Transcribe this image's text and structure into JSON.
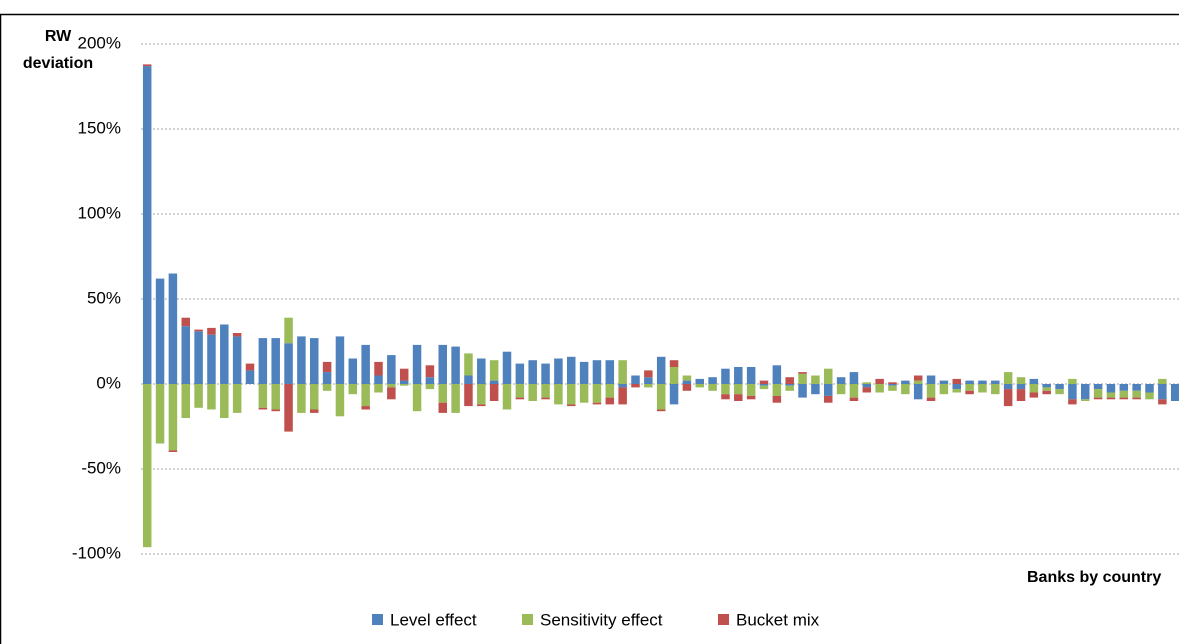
{
  "chart_data": {
    "type": "bar",
    "stacked": true,
    "y_label": [
      "RW",
      "deviation"
    ],
    "x_label": "Banks by country",
    "categories": [
      null,
      null,
      null,
      null,
      null,
      null,
      null,
      null,
      null,
      null,
      null,
      null,
      null,
      null,
      null,
      null,
      null,
      null,
      null,
      null,
      null,
      null,
      null,
      null,
      null,
      null,
      null,
      null,
      null,
      null,
      null,
      null,
      null,
      null,
      null,
      null,
      null,
      null,
      null,
      null,
      null,
      null,
      null,
      null,
      null,
      null,
      null,
      null,
      null,
      null,
      null,
      null,
      null,
      null,
      null,
      null,
      null,
      null,
      null,
      null,
      null,
      null,
      null,
      null,
      null,
      null,
      null,
      null,
      null,
      null,
      null,
      null,
      null,
      null,
      null,
      null,
      null,
      null,
      null,
      null,
      null
    ],
    "series": [
      {
        "name": "Level effect",
        "color": "#4f81bd",
        "values": [
          187,
          62,
          65,
          34,
          31,
          29,
          35,
          28,
          8,
          27,
          27,
          24,
          28,
          27,
          7,
          28,
          15,
          23,
          5,
          17,
          2,
          23,
          4,
          23,
          22,
          5,
          15,
          2,
          19,
          12,
          14,
          12,
          15,
          16,
          13,
          14,
          14,
          -2,
          5,
          4,
          16,
          -12,
          2,
          3,
          4,
          9,
          10,
          10,
          -1,
          11,
          -1,
          -8,
          -6,
          -7,
          4,
          7,
          -2,
          0,
          -1,
          2,
          -9,
          5,
          2,
          -3,
          2,
          2,
          2,
          -3,
          -3,
          3,
          -2,
          -3,
          -9,
          -9,
          -3,
          -5,
          -4,
          -4,
          -5,
          -9,
          -10
        ]
      },
      {
        "name": "Sensitivity effect",
        "color": "#9bbb59",
        "values": [
          -96,
          -35,
          -39,
          -20,
          -14,
          -15,
          -20,
          -17,
          0,
          -14,
          -15,
          15,
          -17,
          -15,
          -4,
          -19,
          -6,
          -13,
          -5,
          -2,
          -1,
          -16,
          -3,
          -11,
          -17,
          13,
          -12,
          12,
          -15,
          -8,
          -10,
          -8,
          -12,
          -12,
          -11,
          -11,
          -8,
          14,
          0,
          -2,
          -15,
          10,
          3,
          -2,
          -4,
          -6,
          -6,
          -7,
          -2,
          -7,
          -3,
          6,
          5,
          9,
          -6,
          -8,
          1,
          -5,
          -3,
          -6,
          2,
          -8,
          -6,
          -2,
          -4,
          -5,
          -6,
          7,
          4,
          -5,
          -2,
          -3,
          3,
          -1,
          -5,
          -3,
          -4,
          -4,
          -4,
          3,
          0
        ]
      },
      {
        "name": "Bucket mix",
        "color": "#c0504d",
        "values": [
          1,
          0,
          -1,
          5,
          1,
          4,
          0,
          2,
          4,
          -1,
          -1,
          -28,
          0,
          -2,
          6,
          0,
          0,
          -2,
          8,
          -7,
          7,
          0,
          7,
          -6,
          0,
          -13,
          -1,
          -10,
          0,
          -1,
          0,
          -1,
          0,
          -1,
          0,
          -1,
          -4,
          -10,
          -2,
          4,
          -1,
          4,
          -4,
          0,
          0,
          -3,
          -4,
          -2,
          2,
          -4,
          4,
          1,
          0,
          -4,
          0,
          -2,
          -3,
          3,
          1,
          0,
          3,
          -2,
          0,
          3,
          -2,
          0,
          0,
          -10,
          -7,
          -3,
          -2,
          0,
          -3,
          0,
          -1,
          -1,
          -1,
          -1,
          0,
          -3,
          0
        ]
      }
    ],
    "ylim": [
      -100,
      200
    ],
    "yticks": [
      {
        "value": -100,
        "label": "-100%"
      },
      {
        "value": -50,
        "label": "-50%"
      },
      {
        "value": 0,
        "label": "0%"
      },
      {
        "value": 50,
        "label": "50%"
      },
      {
        "value": 100,
        "label": "100%"
      },
      {
        "value": 150,
        "label": "150%"
      },
      {
        "value": 200,
        "label": "200%"
      }
    ],
    "grid": true,
    "legend": "bottom"
  }
}
